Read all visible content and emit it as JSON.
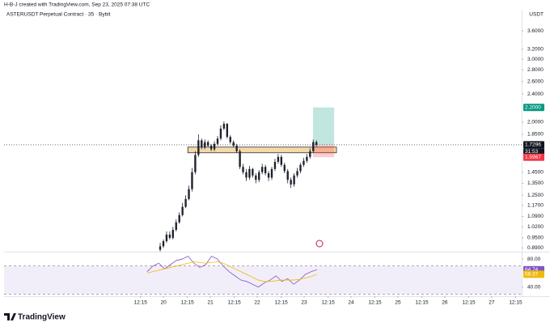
{
  "header": "H-B-J created with TradingView.com, Sep 23, 2025 07:38 UTC",
  "brand": "TradingView",
  "chart_data": [
    {
      "type": "candlestick",
      "title": "ASTERUSDT Perpetual Contract · 35 · Bybit",
      "unit": "USDT",
      "color": "#1e222d",
      "log_scale": true,
      "x": [
        19.93,
        19.998,
        20.066,
        20.134,
        20.202,
        20.27,
        20.338,
        20.406,
        20.474,
        20.542,
        20.61,
        20.678,
        20.746,
        20.814,
        20.882,
        20.95,
        21.018,
        21.086,
        21.154,
        21.222,
        21.29,
        21.358,
        21.426,
        21.494,
        21.562,
        21.63,
        21.698,
        21.766,
        21.834,
        21.902,
        21.97,
        22.038,
        22.106,
        22.174,
        22.242,
        22.31,
        22.378,
        22.446,
        22.514,
        22.582,
        22.65,
        22.718,
        22.786,
        22.854,
        22.922,
        22.99,
        23.058,
        23.126,
        23.194,
        23.262
      ],
      "open": [
        0.88,
        0.9,
        0.93,
        0.97,
        0.95,
        1.0,
        1.05,
        1.1,
        1.16,
        1.22,
        1.3,
        1.45,
        1.62,
        1.78,
        1.7,
        1.76,
        1.72,
        1.68,
        1.74,
        1.8,
        1.92,
        1.98,
        1.82,
        1.76,
        1.72,
        1.66,
        1.5,
        1.45,
        1.4,
        1.48,
        1.42,
        1.38,
        1.45,
        1.5,
        1.44,
        1.4,
        1.48,
        1.55,
        1.6,
        1.52,
        1.46,
        1.38,
        1.34,
        1.42,
        1.46,
        1.52,
        1.56,
        1.6,
        1.66,
        1.76
      ],
      "high": [
        0.92,
        0.94,
        0.99,
        0.99,
        1.02,
        1.07,
        1.12,
        1.19,
        1.25,
        1.33,
        1.49,
        1.66,
        1.85,
        1.8,
        1.79,
        1.78,
        1.74,
        1.77,
        1.83,
        1.96,
        2.01,
        1.99,
        1.84,
        1.78,
        1.74,
        1.68,
        1.53,
        1.48,
        1.51,
        1.49,
        1.44,
        1.47,
        1.53,
        1.52,
        1.46,
        1.5,
        1.58,
        1.63,
        1.62,
        1.54,
        1.48,
        1.4,
        1.44,
        1.49,
        1.54,
        1.59,
        1.63,
        1.69,
        1.79,
        1.78
      ],
      "low": [
        0.87,
        0.89,
        0.92,
        0.94,
        0.94,
        0.99,
        1.04,
        1.09,
        1.15,
        1.21,
        1.28,
        1.43,
        1.6,
        1.68,
        1.68,
        1.7,
        1.66,
        1.66,
        1.72,
        1.78,
        1.9,
        1.8,
        1.74,
        1.7,
        1.64,
        1.48,
        1.43,
        1.37,
        1.38,
        1.4,
        1.35,
        1.36,
        1.43,
        1.42,
        1.37,
        1.38,
        1.46,
        1.53,
        1.5,
        1.44,
        1.35,
        1.31,
        1.32,
        1.4,
        1.44,
        1.5,
        1.54,
        1.58,
        1.64,
        1.71
      ],
      "close": [
        0.9,
        0.93,
        0.97,
        0.95,
        1.0,
        1.05,
        1.1,
        1.16,
        1.22,
        1.3,
        1.45,
        1.62,
        1.78,
        1.7,
        1.76,
        1.72,
        1.68,
        1.74,
        1.8,
        1.92,
        1.98,
        1.82,
        1.76,
        1.72,
        1.66,
        1.5,
        1.45,
        1.4,
        1.48,
        1.42,
        1.38,
        1.45,
        1.5,
        1.44,
        1.4,
        1.48,
        1.55,
        1.6,
        1.52,
        1.46,
        1.38,
        1.34,
        1.42,
        1.46,
        1.52,
        1.56,
        1.6,
        1.66,
        1.76,
        1.7296
      ],
      "ylim": [
        0.86,
        4.0
      ],
      "xlim": [
        16.6,
        27.64
      ],
      "yticks": [
        {
          "value": 3.6,
          "label": "3.6000"
        },
        {
          "value": 3.2,
          "label": "3.2000"
        },
        {
          "value": 3.0,
          "label": "3.0000"
        },
        {
          "value": 2.8,
          "label": "2.8000"
        },
        {
          "value": 2.6,
          "label": "2.6000"
        },
        {
          "value": 2.4,
          "label": "2.4000"
        },
        {
          "value": 2.0,
          "label": "2.0000"
        },
        {
          "value": 1.85,
          "label": "1.8500"
        },
        {
          "value": 1.45,
          "label": "1.4500"
        },
        {
          "value": 1.35,
          "label": "1.3500"
        },
        {
          "value": 1.25,
          "label": "1.2500"
        },
        {
          "value": 1.17,
          "label": "1.1700"
        },
        {
          "value": 1.09,
          "label": "1.0900"
        },
        {
          "value": 1.02,
          "label": "1.0200"
        },
        {
          "value": 0.95,
          "label": "0.9500"
        },
        {
          "value": 0.89,
          "label": "0.8900"
        }
      ],
      "zone": [
        1.643,
        1.704
      ],
      "zone_x": [
        20.52,
        23.69
      ],
      "zone_color": "#f5d9a8",
      "position": {
        "x": [
          23.19,
          23.64
        ],
        "target": {
          "value": 2.2,
          "label": "2.2000"
        },
        "entry": 1.7296,
        "stop": {
          "value": 1.5967,
          "label": "1.5967"
        }
      },
      "countdown": "31:53"
    },
    {
      "type": "line",
      "x": [
        19.65,
        19.775,
        19.9,
        20.025,
        20.15,
        20.275,
        20.4,
        20.525,
        20.65,
        20.775,
        20.9,
        21.025,
        21.15,
        21.275,
        21.4,
        21.525,
        21.65,
        21.775,
        21.9,
        22.025,
        22.15,
        22.275,
        22.4,
        22.525,
        22.65,
        22.775,
        22.9,
        23.025,
        23.15,
        23.275
      ],
      "series": [
        {
          "color": "#7e57c2",
          "values": [
            62,
            70,
            74,
            66,
            72,
            78,
            80,
            84,
            74,
            68,
            72,
            84,
            80,
            70,
            62,
            56,
            50,
            48,
            44,
            40,
            46,
            50,
            56,
            48,
            52,
            44,
            50,
            58,
            62,
            64.74
          ]
        },
        {
          "color": "#f0b90b",
          "values": [
            60,
            62,
            64,
            66,
            68,
            70,
            72,
            74,
            76,
            75,
            74,
            75,
            76,
            74,
            70,
            66,
            62,
            58,
            54,
            50,
            48,
            48,
            49,
            50,
            50,
            50,
            51,
            53,
            55,
            58.37
          ]
        }
      ],
      "ylim": [
        27,
        87
      ],
      "band": [
        30,
        70
      ],
      "xlim": [
        16.6,
        27.64
      ],
      "yticks": [
        {
          "value": 80,
          "label": "80.00"
        },
        {
          "value": 40,
          "label": "40.00"
        }
      ],
      "xticks": [
        {
          "value": 19.51,
          "label": "12:15"
        },
        {
          "value": 20,
          "label": "20"
        },
        {
          "value": 20.51,
          "label": "12:15"
        },
        {
          "value": 21,
          "label": "21"
        },
        {
          "value": 21.51,
          "label": "12:15"
        },
        {
          "value": 22,
          "label": "22"
        },
        {
          "value": 22.51,
          "label": "12:15"
        },
        {
          "value": 23,
          "label": "23"
        },
        {
          "value": 23.51,
          "label": "12:15"
        },
        {
          "value": 24,
          "label": "24"
        },
        {
          "value": 24.51,
          "label": "12:15"
        },
        {
          "value": 25,
          "label": "25"
        },
        {
          "value": 25.51,
          "label": "12:15"
        },
        {
          "value": 26,
          "label": "26"
        },
        {
          "value": 26.51,
          "label": "12:15"
        },
        {
          "value": 27,
          "label": "27"
        },
        {
          "value": 27.51,
          "label": "12:15"
        }
      ]
    }
  ]
}
